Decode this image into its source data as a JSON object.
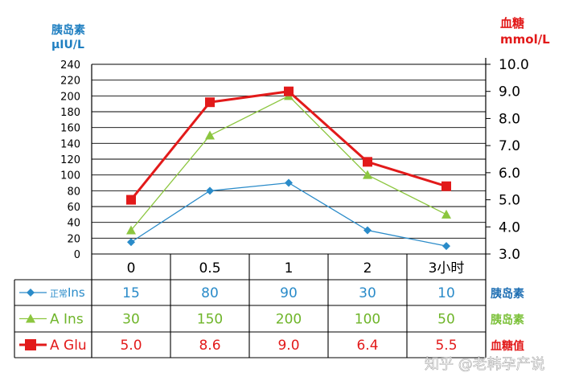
{
  "chart_data": {
    "type": "line",
    "left_axis": {
      "label_line1": "胰岛素",
      "label_line2": "μIU/L",
      "min": 0,
      "max": 240,
      "step": 20,
      "ticks": [
        "240",
        "220",
        "200",
        "180",
        "160",
        "140",
        "120",
        "100",
        "80",
        "60",
        "40",
        "20",
        "0"
      ],
      "color": "#1f7fc1"
    },
    "right_axis": {
      "label_line1": "血糖",
      "label_line2": "mmol/L",
      "min": 3.0,
      "max": 10.0,
      "ticks": [
        "10.0",
        "9.0",
        "8.0",
        "7.0",
        "6.0",
        "5.0",
        "4.0",
        "3.0"
      ],
      "color": "#e21a1a"
    },
    "categories": [
      "0",
      "0.5",
      "1",
      "2",
      "3小时"
    ],
    "grid": true,
    "series": [
      {
        "name": "正常Ins",
        "name_small": "正常",
        "name_main": "Ins",
        "axis": "left",
        "values": [
          15,
          80,
          90,
          30,
          10
        ],
        "display": [
          "15",
          "80",
          "90",
          "30",
          "10"
        ],
        "unit": "胰岛素",
        "marker": "diamond",
        "color": "#2a8bc9",
        "legend_text_color": "#2a8bc9",
        "unit_color": "#1f6fb3"
      },
      {
        "name": "A Ins",
        "axis": "left",
        "values": [
          30,
          150,
          200,
          100,
          50
        ],
        "display": [
          "30",
          "150",
          "200",
          "100",
          "50"
        ],
        "unit": "胰岛素",
        "marker": "triangle",
        "color": "#8cc63f",
        "legend_text_color": "#6fb52a",
        "unit_color": "#7cc13a"
      },
      {
        "name": "A Glu",
        "axis": "right",
        "values": [
          5.0,
          8.6,
          9.0,
          6.4,
          5.5
        ],
        "display": [
          "5.0",
          "8.6",
          "9.0",
          "6.4",
          "5.5"
        ],
        "unit": "血糖值",
        "marker": "square",
        "color": "#e21a1a",
        "legend_text_color": "#e21a1a",
        "unit_color": "#e21a1a"
      }
    ]
  },
  "watermark": "知乎 @老韩孕产说"
}
